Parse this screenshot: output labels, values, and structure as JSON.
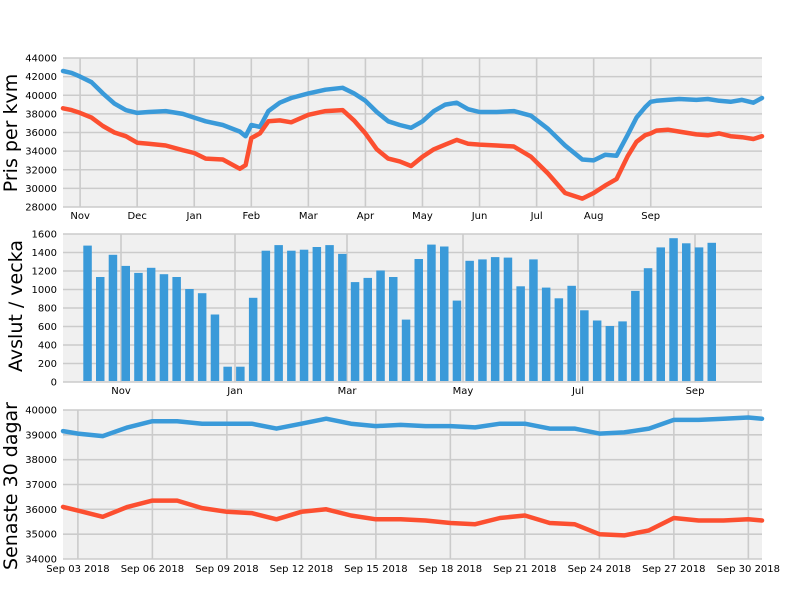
{
  "colors": {
    "blue": "#3a9ad9",
    "red": "#fc4f30",
    "background": "#f0f0f0",
    "grid": "#cbcbcb"
  },
  "chart_data": [
    {
      "type": "line",
      "ylabel": "Pris per kvm",
      "xlabel": "",
      "ylim": [
        28000,
        44000
      ],
      "yticks": [
        28000,
        30000,
        32000,
        34000,
        36000,
        38000,
        40000,
        42000,
        44000
      ],
      "xticks": [
        "Nov",
        "Dec",
        "Jan",
        "Feb",
        "Mar",
        "Apr",
        "May",
        "Jun",
        "Jul",
        "Aug",
        "Sep"
      ],
      "x_range_months": [
        9.7,
        21.95
      ],
      "grid": true,
      "series": [
        {
          "color": "#3a9ad9",
          "x": [
            9.7,
            9.85,
            10.0,
            10.2,
            10.4,
            10.6,
            10.8,
            11.0,
            11.2,
            11.5,
            11.8,
            12.0,
            12.2,
            12.5,
            12.8,
            12.9,
            13.0,
            13.15,
            13.3,
            13.5,
            13.7,
            14.0,
            14.3,
            14.6,
            14.8,
            15.0,
            15.2,
            15.4,
            15.6,
            15.8,
            16.0,
            16.2,
            16.4,
            16.6,
            16.8,
            17.0,
            17.3,
            17.6,
            17.9,
            18.2,
            18.5,
            18.8,
            19.0,
            19.2,
            19.4,
            19.6,
            19.75,
            19.9,
            20.0,
            20.1,
            20.3,
            20.5,
            20.8,
            21.0,
            21.2,
            21.4,
            21.6,
            21.8,
            21.95
          ],
          "values": [
            42600,
            42400,
            42000,
            41400,
            40200,
            39100,
            38400,
            38100,
            38200,
            38300,
            38000,
            37600,
            37200,
            36800,
            36100,
            35600,
            36800,
            36600,
            38300,
            39200,
            39700,
            40200,
            40600,
            40800,
            40200,
            39400,
            38200,
            37200,
            36800,
            36500,
            37200,
            38300,
            39000,
            39200,
            38500,
            38200,
            38200,
            38300,
            37800,
            36400,
            34600,
            33100,
            33000,
            33600,
            33500,
            35800,
            37600,
            38700,
            39300,
            39400,
            39500,
            39600,
            39500,
            39600,
            39400,
            39300,
            39500,
            39200,
            39700
          ]
        },
        {
          "color": "#fc4f30",
          "x": [
            9.7,
            9.85,
            10.0,
            10.2,
            10.4,
            10.6,
            10.8,
            11.0,
            11.2,
            11.5,
            11.8,
            12.0,
            12.2,
            12.5,
            12.8,
            12.9,
            13.0,
            13.15,
            13.3,
            13.5,
            13.7,
            14.0,
            14.3,
            14.6,
            14.8,
            15.0,
            15.2,
            15.4,
            15.6,
            15.8,
            16.0,
            16.2,
            16.4,
            16.6,
            16.8,
            17.0,
            17.3,
            17.6,
            17.9,
            18.2,
            18.5,
            18.8,
            19.0,
            19.2,
            19.4,
            19.6,
            19.75,
            19.9,
            20.0,
            20.1,
            20.3,
            20.5,
            20.8,
            21.0,
            21.2,
            21.4,
            21.6,
            21.8,
            21.95
          ],
          "values": [
            38600,
            38400,
            38100,
            37600,
            36700,
            36000,
            35600,
            34900,
            34800,
            34600,
            34100,
            33800,
            33200,
            33100,
            32100,
            32500,
            35400,
            35900,
            37200,
            37300,
            37100,
            37900,
            38300,
            38400,
            37300,
            35900,
            34200,
            33200,
            32900,
            32400,
            33400,
            34200,
            34700,
            35200,
            34800,
            34700,
            34600,
            34500,
            33400,
            31600,
            29500,
            28900,
            29500,
            30300,
            31000,
            33500,
            35000,
            35700,
            35900,
            36200,
            36300,
            36100,
            35800,
            35700,
            35900,
            35600,
            35500,
            35300,
            35600
          ]
        }
      ]
    },
    {
      "type": "bar",
      "ylabel": "Avslut / vecka",
      "xlabel": "",
      "ylim": [
        0,
        1600
      ],
      "yticks": [
        0,
        200,
        400,
        600,
        800,
        1000,
        1200,
        1400,
        1600
      ],
      "xticks": [
        "Nov",
        "Jan",
        "Mar",
        "May",
        "Jul",
        "Sep"
      ],
      "grid": true,
      "series": [
        {
          "color": "#3a9ad9",
          "values": [
            1475,
            1135,
            1375,
            1255,
            1180,
            1235,
            1165,
            1135,
            1005,
            960,
            730,
            165,
            165,
            910,
            1420,
            1480,
            1420,
            1430,
            1460,
            1480,
            1385,
            1080,
            1125,
            1205,
            1135,
            675,
            1330,
            1485,
            1465,
            880,
            1310,
            1325,
            1350,
            1345,
            1035,
            1325,
            1020,
            905,
            1040,
            775,
            665,
            605,
            655,
            985,
            1230,
            1455,
            1555,
            1500,
            1455,
            1505
          ]
        }
      ]
    },
    {
      "type": "line",
      "ylabel": "Senaste 30 dagar",
      "xlabel": "",
      "ylim": [
        34000,
        40000
      ],
      "yticks": [
        34000,
        35000,
        36000,
        37000,
        38000,
        39000,
        40000
      ],
      "xticks": [
        "Sep 03 2018",
        "Sep 06 2018",
        "Sep 09 2018",
        "Sep 12 2018",
        "Sep 15 2018",
        "Sep 18 2018",
        "Sep 21 2018",
        "Sep 24 2018",
        "Sep 27 2018",
        "Sep 30 2018"
      ],
      "x_day_range": [
        2.4,
        30.55
      ],
      "grid": true,
      "series": [
        {
          "color": "#3a9ad9",
          "x": [
            2.4,
            3,
            4,
            5,
            6,
            7,
            8,
            9,
            10,
            11,
            12,
            13,
            14,
            15,
            16,
            17,
            18,
            19,
            20,
            21,
            22,
            23,
            24,
            25,
            26,
            27,
            28,
            29,
            30,
            30.55
          ],
          "values": [
            39150,
            39050,
            38950,
            39300,
            39550,
            39550,
            39450,
            39450,
            39450,
            39250,
            39450,
            39650,
            39450,
            39350,
            39400,
            39350,
            39350,
            39300,
            39450,
            39450,
            39250,
            39250,
            39050,
            39100,
            39250,
            39600,
            39600,
            39650,
            39700,
            39650
          ]
        },
        {
          "color": "#fc4f30",
          "x": [
            2.4,
            3,
            4,
            5,
            6,
            7,
            8,
            9,
            10,
            11,
            12,
            13,
            14,
            15,
            16,
            17,
            18,
            19,
            20,
            21,
            22,
            23,
            24,
            25,
            26,
            27,
            28,
            29,
            30,
            30.55
          ],
          "values": [
            36100,
            35950,
            35700,
            36100,
            36350,
            36350,
            36050,
            35900,
            35850,
            35600,
            35900,
            36000,
            35750,
            35600,
            35600,
            35550,
            35450,
            35400,
            35650,
            35750,
            35450,
            35400,
            35000,
            34950,
            35150,
            35650,
            35550,
            35550,
            35600,
            35550
          ]
        }
      ]
    }
  ]
}
